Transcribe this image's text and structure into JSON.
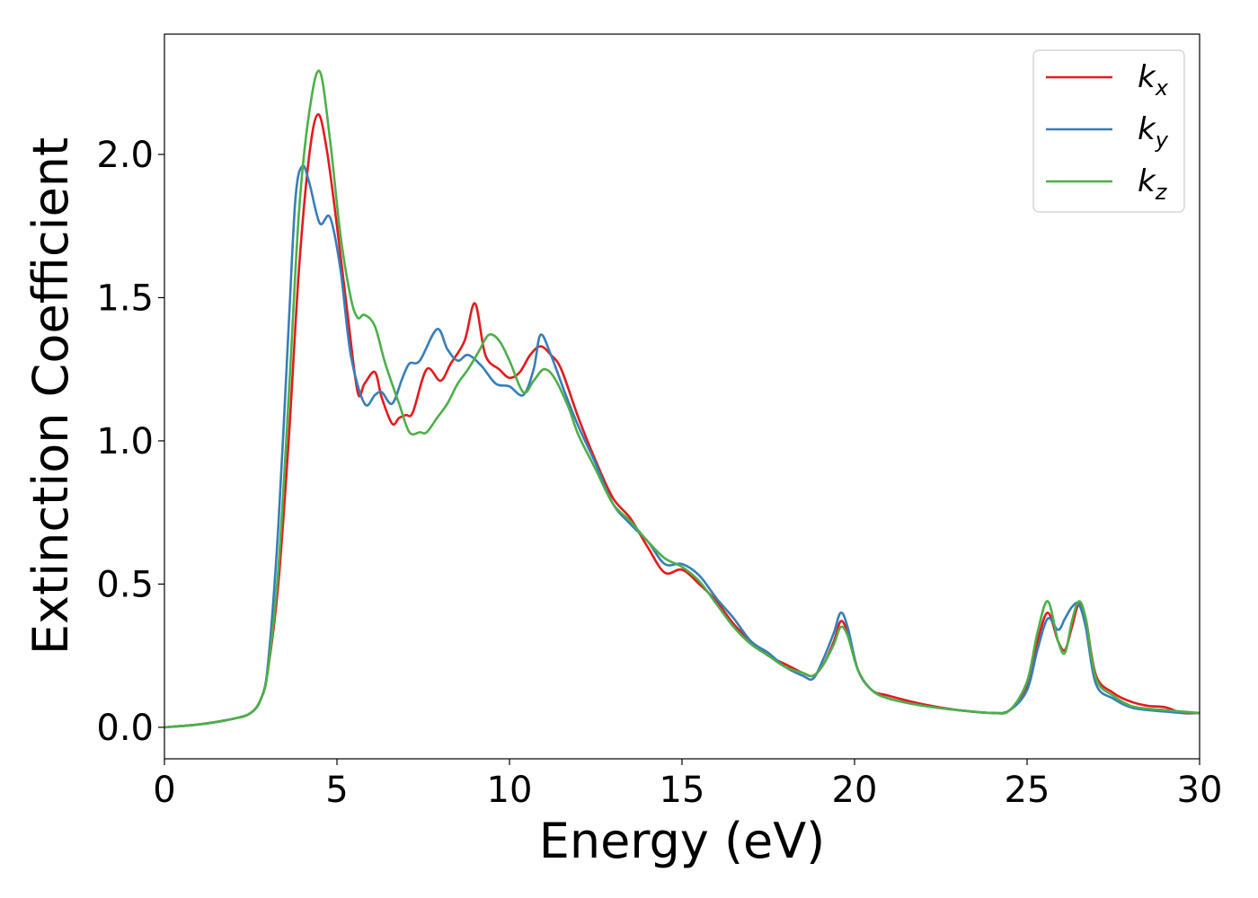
{
  "chart_data": {
    "type": "line",
    "title": "",
    "xlabel": "Energy (eV)",
    "ylabel": "Extinction Coefficient",
    "xlim": [
      0,
      30
    ],
    "ylim": [
      -0.11,
      2.42
    ],
    "xticks": [
      0,
      5,
      10,
      15,
      20,
      25,
      30
    ],
    "xtick_labels": [
      "0",
      "5",
      "10",
      "15",
      "20",
      "25",
      "30"
    ],
    "yticks": [
      0.0,
      0.5,
      1.0,
      1.5,
      2.0
    ],
    "ytick_labels": [
      "0.0",
      "0.5",
      "1.0",
      "1.5",
      "2.0"
    ],
    "grid": false,
    "legend_position": "top-right",
    "series": [
      {
        "name": "k_x",
        "label_main": "k",
        "label_sub": "x",
        "color": "#e41a1c",
        "x": [
          0,
          1,
          2,
          2.5,
          2.8,
          3.0,
          3.3,
          3.6,
          3.9,
          4.2,
          4.45,
          4.7,
          5.0,
          5.3,
          5.6,
          5.8,
          6.1,
          6.3,
          6.6,
          6.8,
          7.0,
          7.2,
          7.6,
          8.0,
          8.3,
          8.7,
          9.0,
          9.3,
          9.7,
          10.0,
          10.3,
          10.6,
          10.9,
          11.2,
          11.5,
          12.0,
          12.5,
          13.0,
          13.5,
          14.0,
          14.5,
          15.0,
          15.5,
          16.0,
          16.5,
          17.0,
          17.5,
          18.0,
          18.5,
          18.8,
          19.1,
          19.4,
          19.6,
          19.8,
          20.1,
          20.5,
          21.0,
          22.0,
          23.0,
          24.0,
          24.5,
          25.0,
          25.3,
          25.6,
          25.9,
          26.1,
          26.3,
          26.5,
          26.7,
          27.0,
          27.5,
          28.0,
          28.5,
          29.0,
          29.5,
          30.0
        ],
        "y": [
          0.0,
          0.01,
          0.03,
          0.05,
          0.1,
          0.2,
          0.5,
          1.0,
          1.6,
          2.0,
          2.14,
          2.02,
          1.75,
          1.45,
          1.17,
          1.2,
          1.24,
          1.15,
          1.06,
          1.08,
          1.09,
          1.1,
          1.25,
          1.21,
          1.27,
          1.35,
          1.48,
          1.3,
          1.25,
          1.22,
          1.24,
          1.3,
          1.33,
          1.3,
          1.25,
          1.08,
          0.93,
          0.8,
          0.73,
          0.63,
          0.54,
          0.55,
          0.5,
          0.44,
          0.36,
          0.3,
          0.25,
          0.22,
          0.19,
          0.18,
          0.22,
          0.3,
          0.37,
          0.33,
          0.2,
          0.13,
          0.11,
          0.08,
          0.06,
          0.05,
          0.06,
          0.15,
          0.3,
          0.4,
          0.3,
          0.27,
          0.35,
          0.43,
          0.38,
          0.18,
          0.12,
          0.09,
          0.075,
          0.07,
          0.05,
          0.05
        ]
      },
      {
        "name": "k_y",
        "label_main": "k",
        "label_sub": "y",
        "color": "#377eb8",
        "x": [
          0,
          1,
          2,
          2.5,
          2.8,
          3.0,
          3.3,
          3.6,
          3.8,
          4.0,
          4.2,
          4.5,
          4.8,
          5.1,
          5.4,
          5.8,
          6.1,
          6.3,
          6.6,
          6.9,
          7.1,
          7.4,
          7.9,
          8.2,
          8.5,
          8.8,
          9.2,
          9.6,
          10.0,
          10.4,
          10.7,
          10.9,
          11.2,
          11.6,
          12.0,
          12.5,
          13.0,
          13.5,
          14.0,
          14.5,
          15.0,
          15.5,
          16.0,
          16.5,
          17.0,
          17.5,
          18.0,
          18.5,
          18.8,
          19.1,
          19.4,
          19.6,
          19.8,
          20.1,
          20.5,
          21.0,
          22.0,
          23.0,
          24.0,
          24.5,
          25.0,
          25.3,
          25.6,
          25.9,
          26.1,
          26.3,
          26.5,
          26.7,
          27.0,
          27.5,
          28.0,
          28.5,
          29.0,
          29.5,
          30.0
        ],
        "y": [
          0.0,
          0.01,
          0.03,
          0.05,
          0.1,
          0.22,
          0.7,
          1.4,
          1.85,
          1.96,
          1.9,
          1.76,
          1.78,
          1.6,
          1.3,
          1.13,
          1.16,
          1.17,
          1.13,
          1.22,
          1.27,
          1.28,
          1.39,
          1.32,
          1.28,
          1.3,
          1.26,
          1.2,
          1.19,
          1.16,
          1.25,
          1.37,
          1.3,
          1.17,
          1.05,
          0.92,
          0.78,
          0.71,
          0.65,
          0.57,
          0.57,
          0.53,
          0.45,
          0.38,
          0.3,
          0.26,
          0.21,
          0.18,
          0.17,
          0.24,
          0.33,
          0.4,
          0.35,
          0.2,
          0.13,
          0.1,
          0.075,
          0.06,
          0.05,
          0.06,
          0.13,
          0.27,
          0.38,
          0.34,
          0.38,
          0.42,
          0.43,
          0.35,
          0.15,
          0.1,
          0.07,
          0.06,
          0.055,
          0.05,
          0.05
        ]
      },
      {
        "name": "k_z",
        "label_main": "k",
        "label_sub": "z",
        "color": "#4daf4a",
        "x": [
          0,
          1,
          2,
          2.5,
          2.8,
          3.0,
          3.3,
          3.6,
          3.9,
          4.2,
          4.5,
          4.8,
          5.1,
          5.4,
          5.6,
          5.8,
          6.1,
          6.4,
          6.8,
          7.1,
          7.4,
          7.6,
          7.9,
          8.2,
          8.5,
          8.8,
          9.1,
          9.4,
          9.7,
          10.0,
          10.4,
          10.7,
          11.0,
          11.3,
          11.7,
          12.0,
          12.5,
          13.0,
          13.5,
          14.0,
          14.5,
          15.0,
          15.5,
          16.0,
          16.5,
          17.0,
          17.5,
          18.0,
          18.5,
          18.8,
          19.1,
          19.4,
          19.6,
          19.8,
          20.1,
          20.5,
          21.0,
          22.0,
          23.0,
          24.0,
          24.5,
          25.0,
          25.3,
          25.6,
          25.9,
          26.1,
          26.3,
          26.5,
          26.7,
          27.0,
          27.5,
          28.0,
          28.5,
          29.0,
          29.5,
          30.0
        ],
        "y": [
          0.0,
          0.01,
          0.03,
          0.05,
          0.1,
          0.2,
          0.55,
          1.15,
          1.8,
          2.15,
          2.29,
          2.05,
          1.72,
          1.5,
          1.43,
          1.44,
          1.4,
          1.27,
          1.13,
          1.03,
          1.03,
          1.03,
          1.08,
          1.13,
          1.2,
          1.25,
          1.31,
          1.37,
          1.35,
          1.28,
          1.17,
          1.21,
          1.25,
          1.22,
          1.12,
          1.02,
          0.9,
          0.78,
          0.72,
          0.65,
          0.59,
          0.56,
          0.51,
          0.43,
          0.35,
          0.29,
          0.25,
          0.21,
          0.19,
          0.18,
          0.22,
          0.29,
          0.35,
          0.32,
          0.2,
          0.13,
          0.1,
          0.075,
          0.06,
          0.05,
          0.06,
          0.16,
          0.33,
          0.44,
          0.3,
          0.26,
          0.37,
          0.44,
          0.38,
          0.17,
          0.11,
          0.075,
          0.065,
          0.06,
          0.055,
          0.05
        ]
      }
    ]
  }
}
